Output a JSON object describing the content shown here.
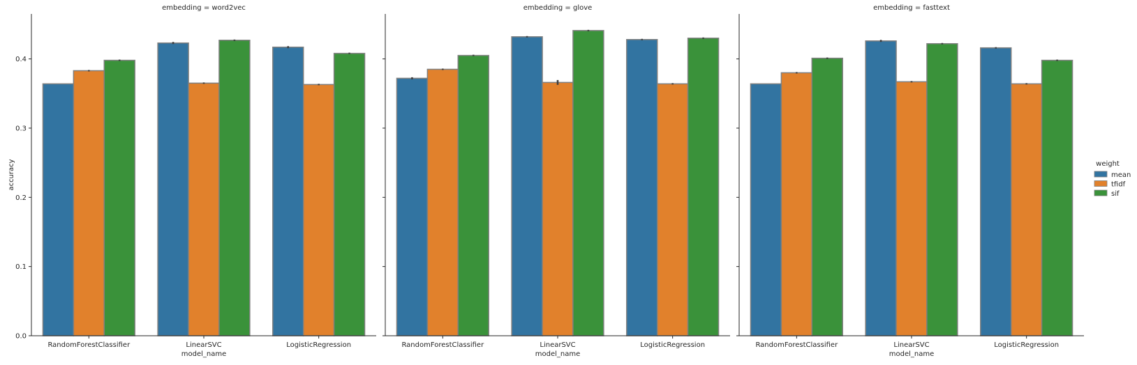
{
  "chart_data": {
    "type": "bar",
    "ylabel": "accuracy",
    "xlabel": "model_name",
    "ylim": [
      0,
      0.465
    ],
    "yticks": [
      0.0,
      0.1,
      0.2,
      0.3,
      0.4
    ],
    "ytick_labels": [
      "0.0",
      "0.1",
      "0.2",
      "0.3",
      "0.4"
    ],
    "categories": [
      "RandomForestClassifier",
      "LinearSVC",
      "LogisticRegression"
    ],
    "legend": {
      "title": "weight",
      "placement": "right",
      "entries": [
        "mean",
        "tfidf",
        "sif"
      ]
    },
    "colors": {
      "mean": "#3274a1",
      "tfidf": "#e1812c",
      "sif": "#3a923a",
      "edge": "#7f7f7f",
      "error": "#3f3f3f"
    },
    "grid": false,
    "facets": [
      {
        "title": "embedding = word2vec",
        "series": [
          {
            "name": "mean",
            "values": [
              0.364,
              0.423,
              0.417
            ]
          },
          {
            "name": "tfidf",
            "values": [
              0.383,
              0.365,
              0.363
            ]
          },
          {
            "name": "sif",
            "values": [
              0.398,
              0.427,
              0.408
            ]
          }
        ],
        "errors": [
          [
            0.0,
            0.0015,
            0.0015
          ],
          [
            0.001,
            0.001,
            0.001
          ],
          [
            0.001,
            0.001,
            0.001
          ]
        ]
      },
      {
        "title": "embedding = glove",
        "series": [
          {
            "name": "mean",
            "values": [
              0.372,
              0.432,
              0.428
            ]
          },
          {
            "name": "tfidf",
            "values": [
              0.385,
              0.366,
              0.364
            ]
          },
          {
            "name": "sif",
            "values": [
              0.405,
              0.441,
              0.43
            ]
          }
        ],
        "errors": [
          [
            0.0015,
            0.001,
            0.001
          ],
          [
            0.001,
            0.0035,
            0.001
          ],
          [
            0.001,
            0.001,
            0.001
          ]
        ]
      },
      {
        "title": "embedding = fasttext",
        "series": [
          {
            "name": "mean",
            "values": [
              0.364,
              0.426,
              0.416
            ]
          },
          {
            "name": "tfidf",
            "values": [
              0.38,
              0.367,
              0.364
            ]
          },
          {
            "name": "sif",
            "values": [
              0.401,
              0.422,
              0.398
            ]
          }
        ],
        "errors": [
          [
            0.0,
            0.0015,
            0.001
          ],
          [
            0.001,
            0.001,
            0.001
          ],
          [
            0.001,
            0.001,
            0.001
          ]
        ]
      }
    ]
  }
}
